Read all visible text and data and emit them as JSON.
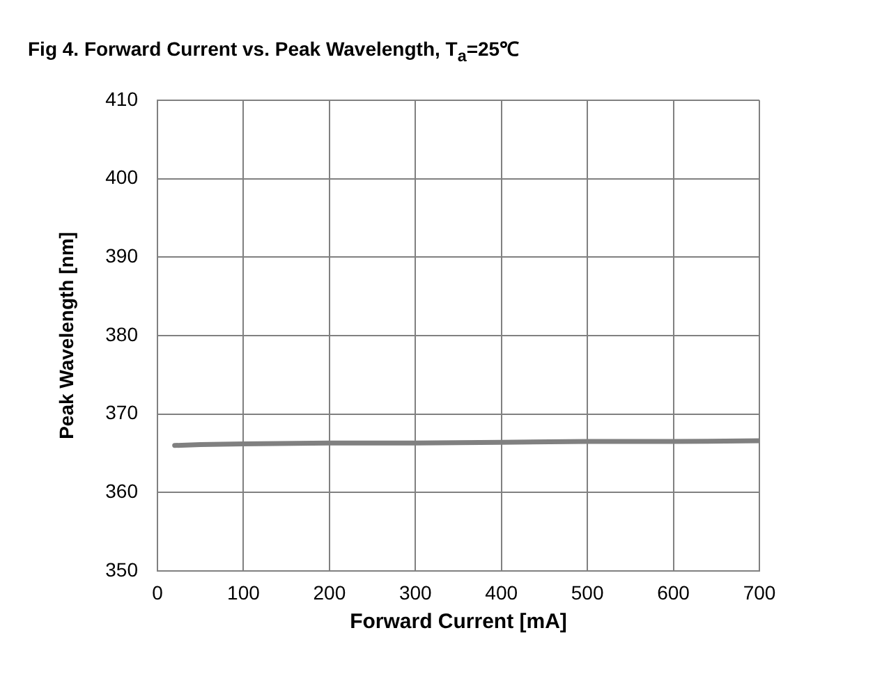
{
  "chart_data": {
    "type": "line",
    "title": "Fig 4. Forward Current vs. Peak Wavelength, T$_{a}$=25℃",
    "xlabel": "Forward Current [mA]",
    "ylabel": "Peak Wavelength [nm]",
    "x": [
      20,
      50,
      100,
      200,
      300,
      400,
      500,
      600,
      700
    ],
    "series": [
      {
        "color": "#808080",
        "values": [
          366.0,
          366.1,
          366.2,
          366.3,
          366.3,
          366.4,
          366.5,
          366.5,
          366.6
        ]
      }
    ],
    "xlim": [
      0,
      700
    ],
    "ylim": [
      350,
      410
    ],
    "xticks": [
      0,
      100,
      200,
      300,
      400,
      500,
      600,
      700
    ],
    "yticks": [
      350,
      360,
      370,
      380,
      390,
      400,
      410
    ],
    "grid": true,
    "legend": false,
    "marker": "none",
    "line_style": "solid"
  }
}
